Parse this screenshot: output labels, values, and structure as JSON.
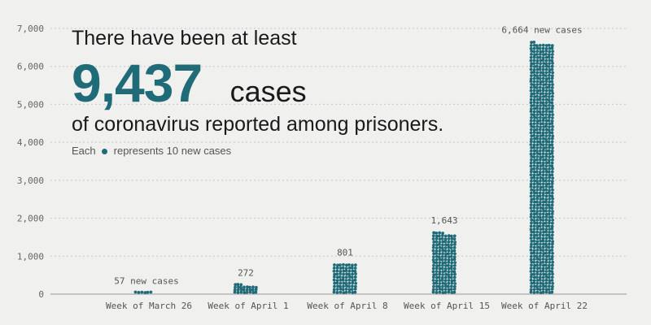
{
  "headline": {
    "line1": "There have been at least",
    "big_number": "9,437",
    "big_unit": "cases",
    "line3": "of coronavirus reported among prisoners."
  },
  "legend": {
    "prefix": "Each",
    "suffix": "represents 10 new cases"
  },
  "colors": {
    "dot": "#1f6b78",
    "background": "#f0f0ee",
    "grid": "#c8c8c8"
  },
  "chart_data": {
    "type": "bar",
    "categories": [
      "Week of March 26",
      "Week of April 1",
      "Week of April 8",
      "Week of April 15",
      "Week of April 22"
    ],
    "values": [
      57,
      272,
      801,
      1643,
      6664
    ],
    "data_labels": [
      "57 new cases",
      "272",
      "801",
      "1,643",
      "6,664 new cases"
    ],
    "ylim": [
      0,
      7000
    ],
    "yticks": [
      0,
      1000,
      2000,
      3000,
      4000,
      5000,
      6000,
      7000
    ],
    "ytick_labels": [
      "0",
      "1,000",
      "2,000",
      "3,000",
      "4,000",
      "5,000",
      "6,000",
      "7,000"
    ],
    "units_per_dot": 10,
    "grid": true
  }
}
